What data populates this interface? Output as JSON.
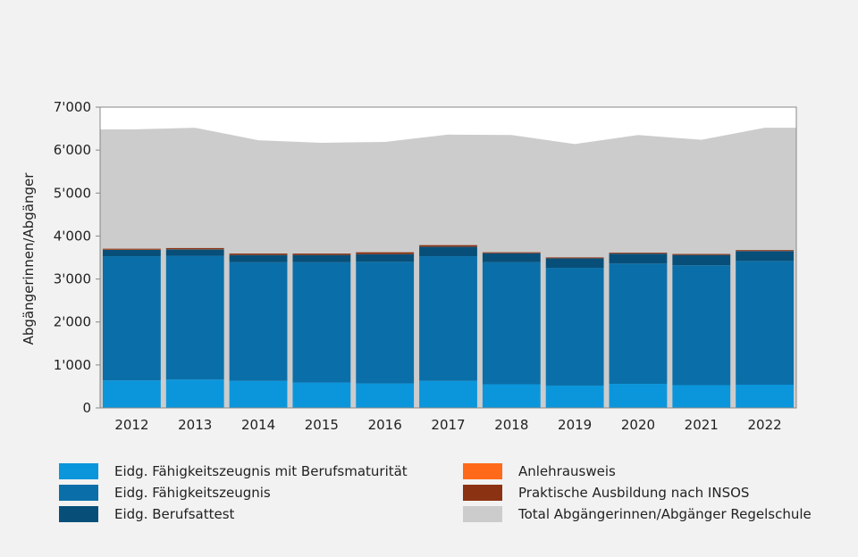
{
  "chart_data": {
    "type": "bar",
    "title": "",
    "xlabel": "",
    "ylabel": "Abgängerinnen/Abgänger",
    "ylim": [
      0,
      7000
    ],
    "yticks": [
      {
        "value": 0,
        "label": "0"
      },
      {
        "value": 1000,
        "label": "1'000"
      },
      {
        "value": 2000,
        "label": "2'000"
      },
      {
        "value": 3000,
        "label": "3'000"
      },
      {
        "value": 4000,
        "label": "4'000"
      },
      {
        "value": 5000,
        "label": "5'000"
      },
      {
        "value": 6000,
        "label": "6'000"
      },
      {
        "value": 7000,
        "label": "7'000"
      }
    ],
    "grid": false,
    "legend_position": "bottom",
    "categories": [
      "2012",
      "2013",
      "2014",
      "2015",
      "2016",
      "2017",
      "2018",
      "2019",
      "2020",
      "2021",
      "2022"
    ],
    "series": [
      {
        "name": "Eidg. Fähigkeitszeugnis mit Berufsmaturität",
        "type": "stacked-bar",
        "color": "#0b96dc",
        "values": [
          640,
          660,
          630,
          590,
          570,
          630,
          550,
          520,
          560,
          530,
          540
        ]
      },
      {
        "name": "Eidg. Fähigkeitszeugnis",
        "type": "stacked-bar",
        "color": "#0a6fa8",
        "values": [
          2890,
          2880,
          2760,
          2800,
          2830,
          2900,
          2840,
          2740,
          2800,
          2790,
          2880
        ]
      },
      {
        "name": "Eidg. Berufsattest",
        "type": "stacked-bar",
        "color": "#074f79",
        "values": [
          150,
          150,
          170,
          170,
          180,
          220,
          210,
          220,
          230,
          240,
          230
        ]
      },
      {
        "name": "Anlehrausweis",
        "type": "stacked-bar",
        "color": "#ff6a1a",
        "values": [
          5,
          5,
          3,
          2,
          2,
          3,
          2,
          2,
          2,
          2,
          2
        ]
      },
      {
        "name": "Praktische Ausbildung nach INSOS",
        "type": "stacked-bar",
        "color": "#8b3213",
        "values": [
          20,
          25,
          30,
          30,
          40,
          35,
          20,
          20,
          20,
          20,
          20
        ]
      },
      {
        "name": "Total Abgängerinnen/Abgänger Regelschule",
        "type": "area",
        "color": "#cccccc",
        "values": [
          6480,
          6520,
          6230,
          6170,
          6190,
          6360,
          6350,
          6140,
          6350,
          6240,
          6520
        ]
      }
    ]
  },
  "legend": {
    "items": [
      {
        "label": "Eidg. Fähigkeitszeugnis mit Berufsmaturität",
        "color": "#0b96dc"
      },
      {
        "label": "Eidg. Fähigkeitszeugnis",
        "color": "#0a6fa8"
      },
      {
        "label": "Eidg. Berufsattest",
        "color": "#074f79"
      },
      {
        "label": "Anlehrausweis",
        "color": "#ff6a1a"
      },
      {
        "label": "Praktische Ausbildung nach INSOS",
        "color": "#8b3213"
      },
      {
        "label": "Total Abgängerinnen/Abgänger Regelschule",
        "color": "#cccccc"
      }
    ]
  }
}
